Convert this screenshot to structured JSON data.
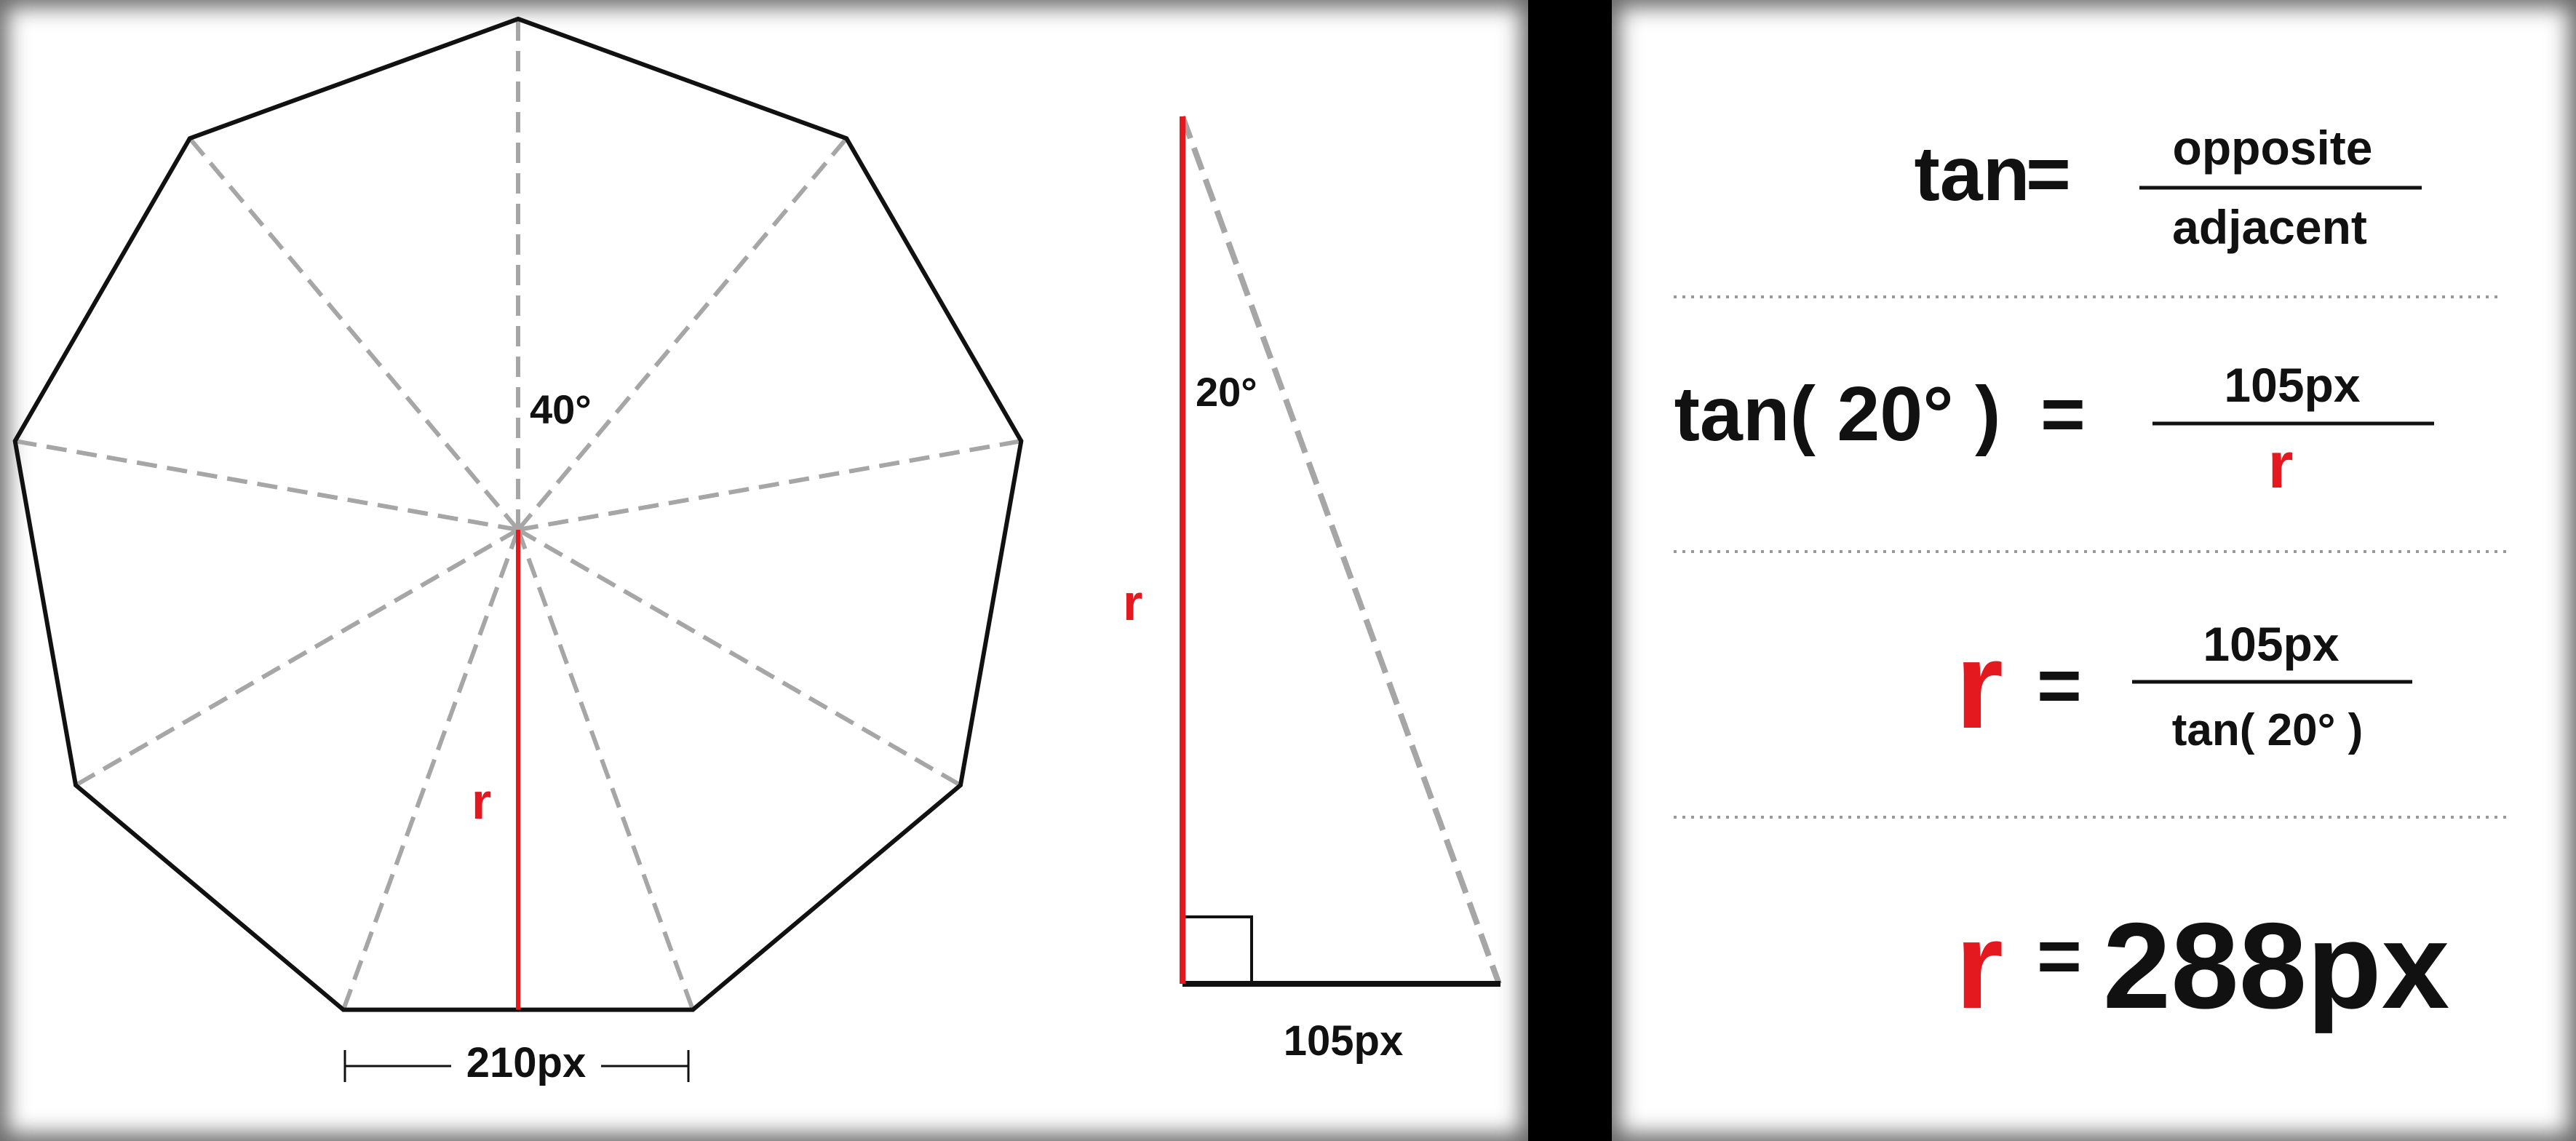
{
  "colors": {
    "outline": "#111111",
    "dashed": "#a6a6a6",
    "highlight": "#e3191f",
    "text": "#111111"
  },
  "diagram": {
    "polygon": {
      "sides": 9,
      "center_angle_label": "40°",
      "radius_label": "r",
      "side_label": "210px"
    },
    "triangle": {
      "angle_label": "20°",
      "vertical_label": "r",
      "base_label": "105px"
    }
  },
  "equations": [
    {
      "lhs": "tan",
      "eq": "=",
      "num": "opposite",
      "den": "adjacent"
    },
    {
      "lhs": "tan( 20° )",
      "eq": "=",
      "num": "105px",
      "den": "r"
    },
    {
      "lhs": "r",
      "eq": "=",
      "num": "105px",
      "den": "tan( 20° )"
    },
    {
      "lhs": "r",
      "eq": "=",
      "result": "288px"
    }
  ]
}
